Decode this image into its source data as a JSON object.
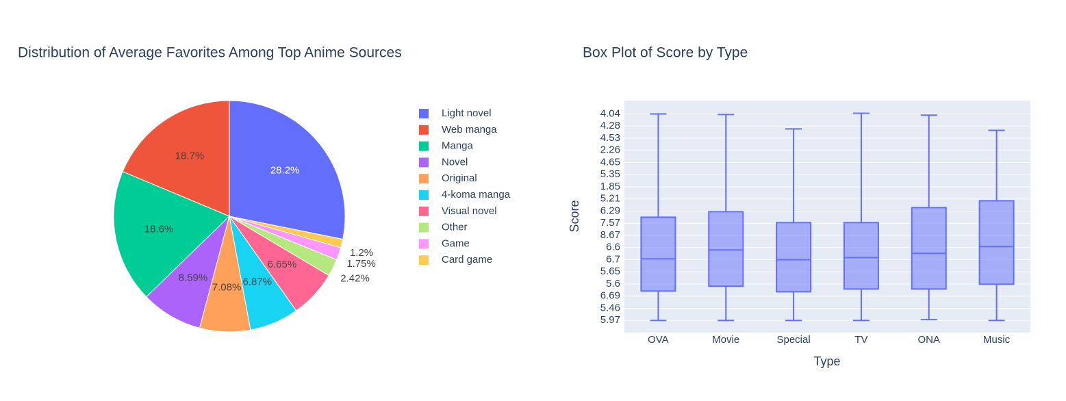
{
  "chart_data": [
    {
      "type": "pie",
      "title": "Distribution of Average Favorites Among Top Anime Sources",
      "categories": [
        "Light novel",
        "Web manga",
        "Manga",
        "Novel",
        "Original",
        "4-koma manga",
        "Visual novel",
        "Other",
        "Game",
        "Card game"
      ],
      "values": [
        28.2,
        18.7,
        18.6,
        8.59,
        7.08,
        6.87,
        6.65,
        2.42,
        1.75,
        1.2
      ],
      "value_labels": [
        "28.2%",
        "18.7%",
        "18.6%",
        "8.59%",
        "7.08%",
        "6.87%",
        "6.65%",
        "2.42%",
        "1.75%",
        "1.2%"
      ],
      "colors": [
        "#636efa",
        "#EF553B",
        "#00cc96",
        "#ab63fa",
        "#FFA15A",
        "#19d3f3",
        "#FF6692",
        "#B6E880",
        "#FF97FF",
        "#FECB52"
      ],
      "legend": "right"
    },
    {
      "type": "box",
      "title": "Box Plot of Score by Type",
      "x_label": "Type",
      "y_label": "Score",
      "categories": [
        "OVA",
        "Movie",
        "Special",
        "TV",
        "ONA",
        "Music"
      ],
      "color": "#636efa",
      "lowerfence": [
        0,
        0,
        0,
        0,
        0.06,
        0
      ],
      "q1": [
        2.42,
        2.82,
        2.36,
        2.59,
        2.59,
        2.98
      ],
      "median": [
        5.07,
        5.8,
        5.0,
        5.18,
        5.52,
        6.08
      ],
      "q3": [
        8.5,
        8.95,
        8.05,
        8.05,
        9.29,
        9.85
      ],
      "upperfence": [
        17.0,
        16.95,
        15.77,
        17.06,
        16.9,
        15.65
      ],
      "ylim": [
        -1,
        18.1
      ],
      "yticks": [
        {
          "value": 0,
          "label": "5.97"
        },
        {
          "value": 1,
          "label": "5.46"
        },
        {
          "value": 2,
          "label": "6.69"
        },
        {
          "value": 3,
          "label": "5.6"
        },
        {
          "value": 4,
          "label": "5.65"
        },
        {
          "value": 5,
          "label": "6.7"
        },
        {
          "value": 6,
          "label": "6.6"
        },
        {
          "value": 7,
          "label": "8.67"
        },
        {
          "value": 8,
          "label": "7.57"
        },
        {
          "value": 9,
          "label": "6.29"
        },
        {
          "value": 10,
          "label": "5.21"
        },
        {
          "value": 11,
          "label": "1.85"
        },
        {
          "value": 12,
          "label": "5.35"
        },
        {
          "value": 13,
          "label": "4.65"
        },
        {
          "value": 14,
          "label": "2.26"
        },
        {
          "value": 15,
          "label": "4.53"
        },
        {
          "value": 16,
          "label": "4.28"
        },
        {
          "value": 17,
          "label": "4.04"
        }
      ],
      "grid": true
    }
  ]
}
